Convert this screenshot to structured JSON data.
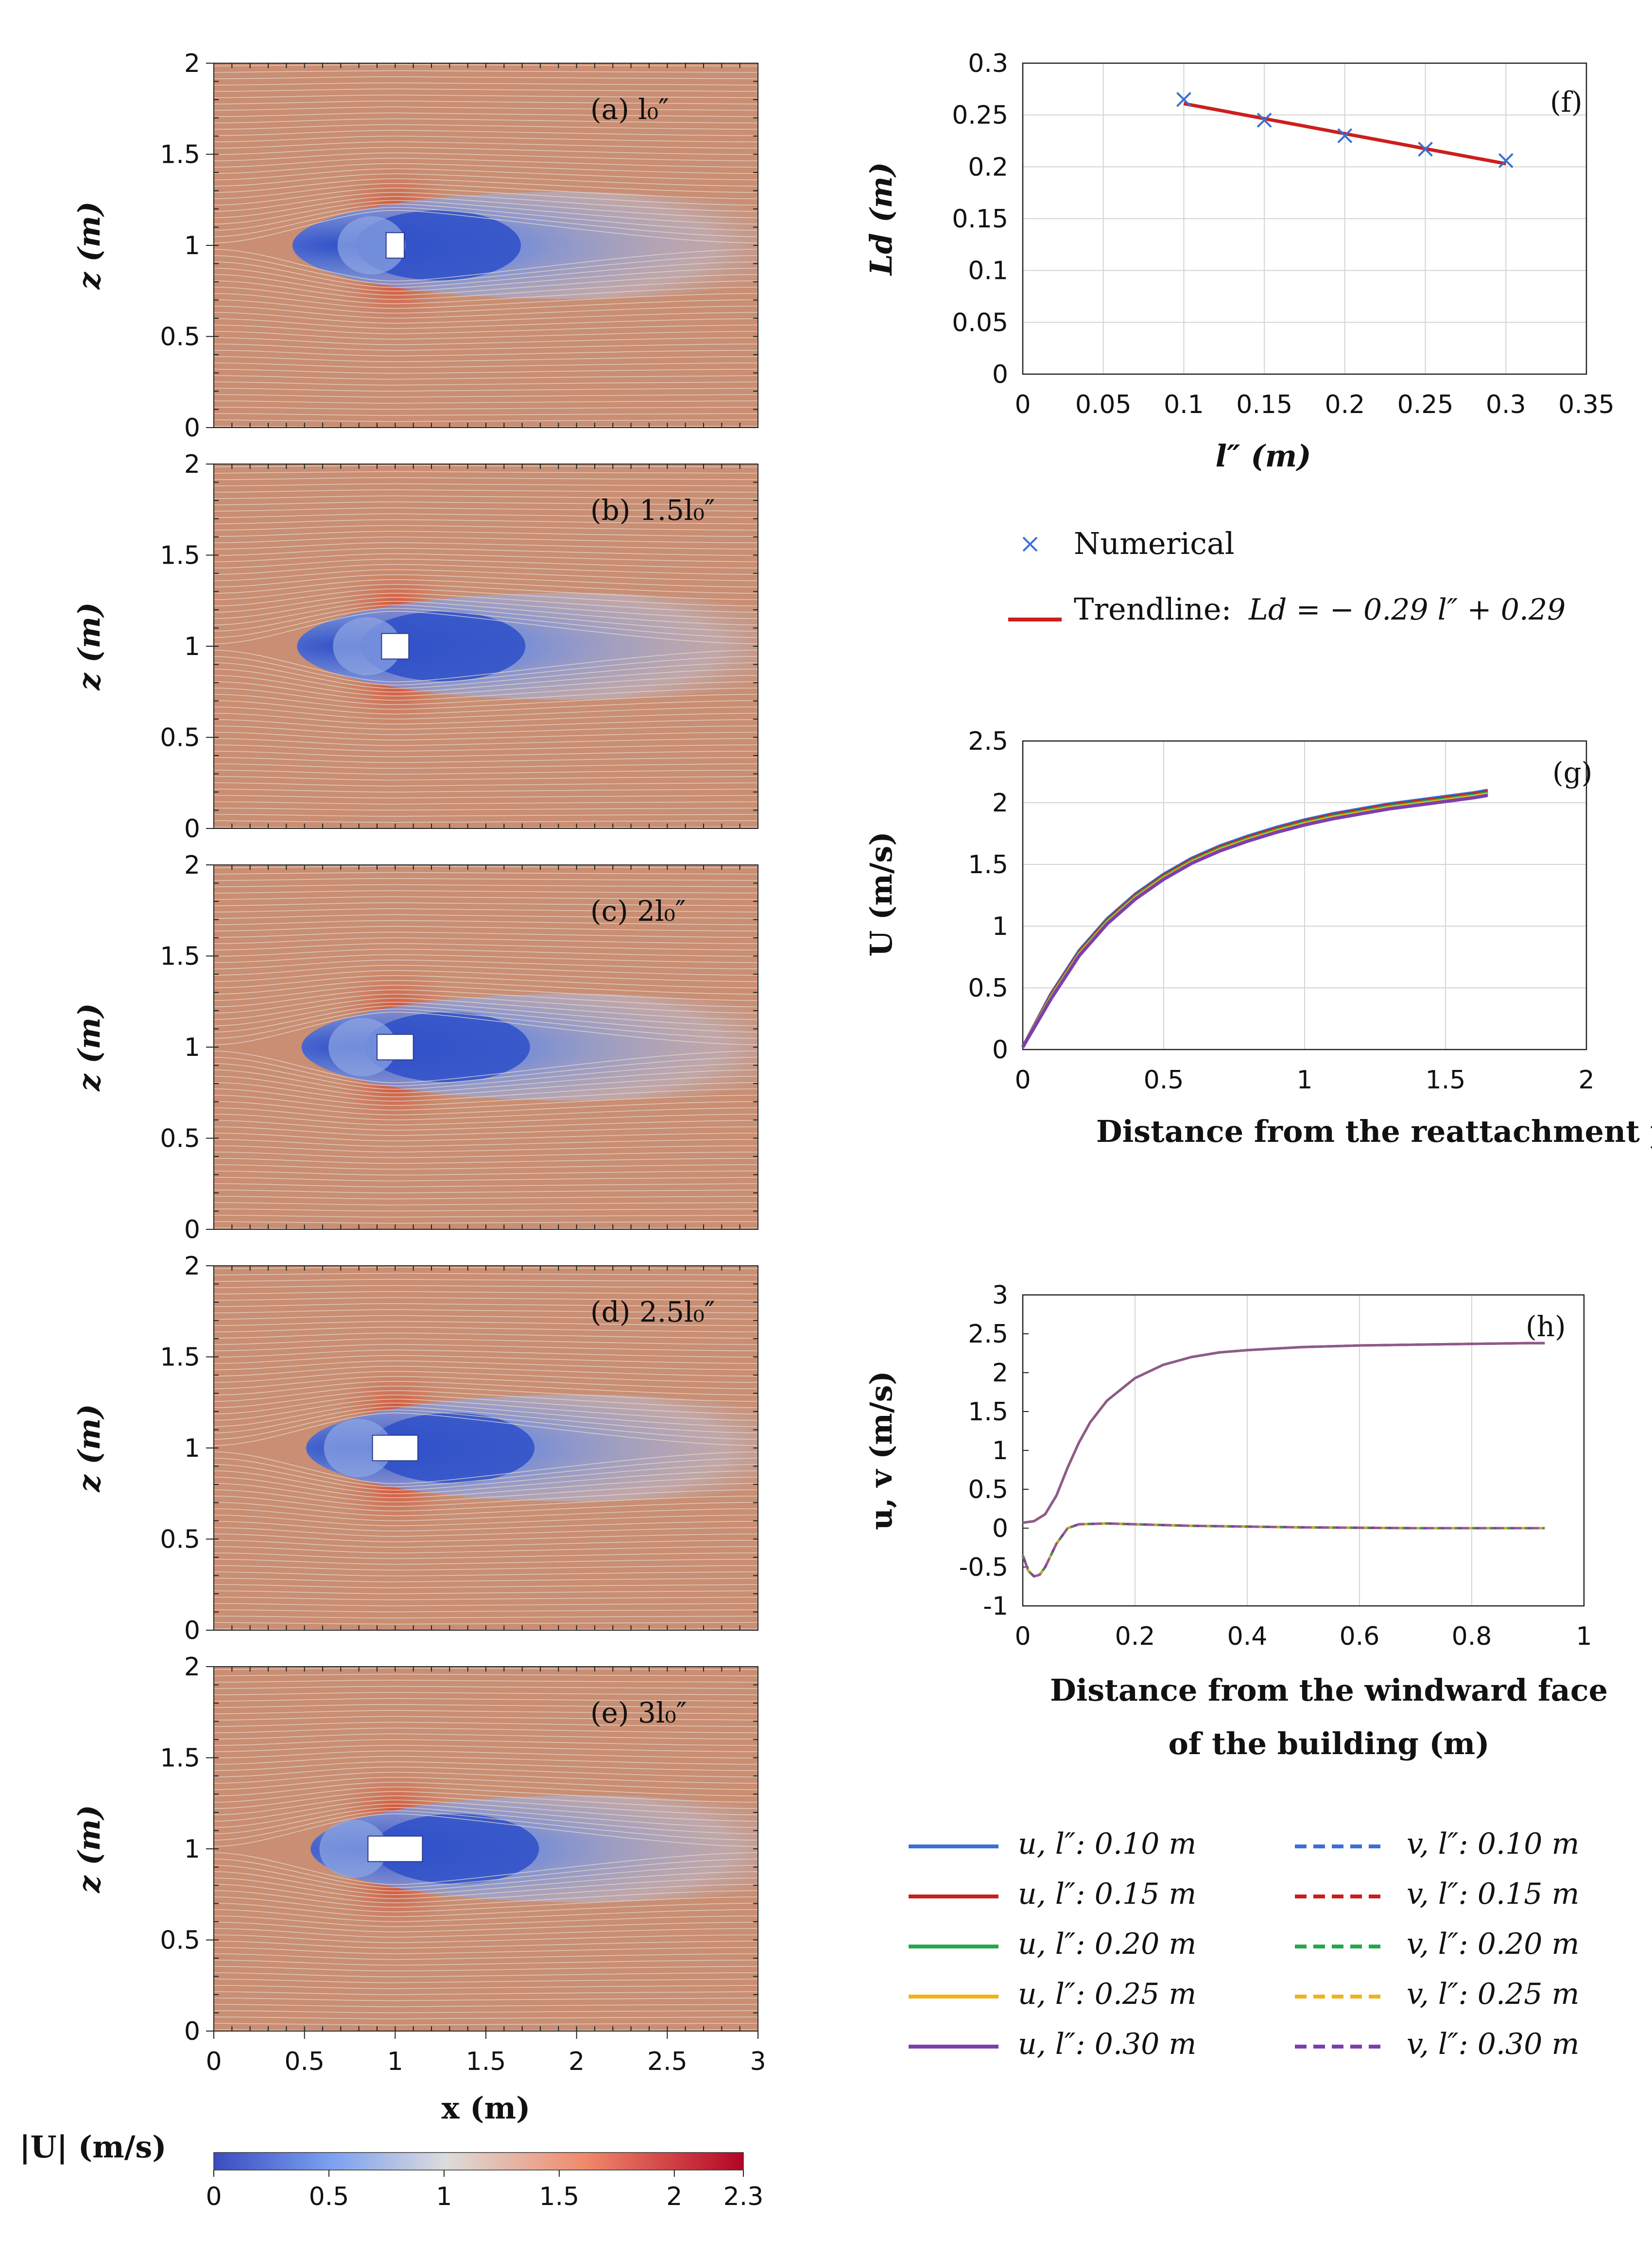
{
  "colors": {
    "field_bg": "#c98e73",
    "streamline": "#e6dccf",
    "wake": "#2e4fc8",
    "stagnation": "#d24a33",
    "trend": "#cc1f1f",
    "numerical": "#3a6fd0",
    "series": [
      "#3a6fd8",
      "#c81e1e",
      "#22a84a",
      "#f2b21c",
      "#7c3fae"
    ],
    "colorbar": [
      "#3b4cc0",
      "#7aa0f0",
      "#dcdcdc",
      "#f08a6a",
      "#b40426"
    ]
  },
  "chart_data": [
    {
      "id": "a",
      "type": "heatmap",
      "title": "(a)  l₀″",
      "xlim": [
        0,
        3
      ],
      "ylim": [
        0,
        2
      ],
      "yticks": [
        "0",
        "0.5",
        "1",
        "1.5",
        "2"
      ],
      "ylabel": "z  (m)",
      "building": {
        "x": [
          0.95,
          1.05
        ],
        "z": [
          0.93,
          1.07
        ]
      }
    },
    {
      "id": "b",
      "type": "heatmap",
      "title": "(b) 1.5l₀″",
      "xlim": [
        0,
        3
      ],
      "ylim": [
        0,
        2
      ],
      "yticks": [
        "0",
        "0.5",
        "1",
        "1.5",
        "2"
      ],
      "ylabel": "z  (m)",
      "building": {
        "x": [
          0.925,
          1.075
        ],
        "z": [
          0.93,
          1.07
        ]
      }
    },
    {
      "id": "c",
      "type": "heatmap",
      "title": "(c) 2l₀″",
      "xlim": [
        0,
        3
      ],
      "ylim": [
        0,
        2
      ],
      "yticks": [
        "0",
        "0.5",
        "1",
        "1.5",
        "2"
      ],
      "ylabel": "z  (m)",
      "building": {
        "x": [
          0.9,
          1.1
        ],
        "z": [
          0.93,
          1.07
        ]
      }
    },
    {
      "id": "d",
      "type": "heatmap",
      "title": "(d) 2.5l₀″",
      "xlim": [
        0,
        3
      ],
      "ylim": [
        0,
        2
      ],
      "yticks": [
        "0",
        "0.5",
        "1",
        "1.5",
        "2"
      ],
      "ylabel": "z  (m)",
      "building": {
        "x": [
          0.875,
          1.125
        ],
        "z": [
          0.93,
          1.07
        ]
      }
    },
    {
      "id": "e",
      "type": "heatmap",
      "title": "(e) 3l₀″",
      "xlim": [
        0,
        3
      ],
      "ylim": [
        0,
        2
      ],
      "xticks": [
        "0",
        "0.5",
        "1",
        "1.5",
        "2",
        "2.5",
        "3"
      ],
      "yticks": [
        "0",
        "0.5",
        "1",
        "1.5",
        "2"
      ],
      "xlabel": "x (m)",
      "ylabel": "z  (m)",
      "building": {
        "x": [
          0.85,
          1.15
        ],
        "z": [
          0.93,
          1.07
        ]
      }
    },
    {
      "id": "colorbar",
      "type": "colorbar",
      "label": "|U| (m/s)",
      "range": [
        0,
        2.3
      ],
      "ticks": [
        "0",
        "0.5",
        "1",
        "1.5",
        "2",
        "2.3"
      ]
    },
    {
      "id": "f",
      "type": "scatter",
      "title": "(f)",
      "xlabel": "l″ (m)",
      "ylabel": "Ld (m)",
      "xlim": [
        0,
        0.35
      ],
      "ylim": [
        0,
        0.3
      ],
      "xticks": [
        "0",
        "0.05",
        "0.1",
        "0.15",
        "0.2",
        "0.25",
        "0.3",
        "0.35"
      ],
      "yticks": [
        "0",
        "0.05",
        "0.1",
        "0.15",
        "0.2",
        "0.25",
        "0.3"
      ],
      "x": [
        0.1,
        0.15,
        0.2,
        0.25,
        0.3
      ],
      "y": [
        0.265,
        0.245,
        0.23,
        0.217,
        0.206
      ],
      "trend": {
        "x": [
          0.1,
          0.3
        ],
        "y": [
          0.261,
          0.203
        ]
      },
      "legend": {
        "numerical": "Numerical",
        "trend_prefix": "Trendline:",
        "trend_eq": "Ld = − 0.29 l″ + 0.29"
      }
    },
    {
      "id": "g",
      "type": "line",
      "title": "(g)",
      "xlabel": "Distance from the reattachment point  (m)",
      "ylabel": "U  (m/s)",
      "xlim": [
        0,
        2
      ],
      "ylim": [
        0,
        2.5
      ],
      "xticks": [
        "0",
        "0.5",
        "1",
        "1.5",
        "2"
      ],
      "yticks": [
        "0",
        "0.5",
        "1",
        "1.5",
        "2",
        "2.5"
      ],
      "x": [
        0,
        0.1,
        0.2,
        0.3,
        0.4,
        0.5,
        0.6,
        0.7,
        0.8,
        0.9,
        1.0,
        1.1,
        1.2,
        1.3,
        1.4,
        1.5,
        1.6,
        1.65
      ],
      "series": [
        {
          "name": "l″: 0.10 m",
          "values": [
            0.02,
            0.45,
            0.8,
            1.06,
            1.26,
            1.42,
            1.55,
            1.65,
            1.73,
            1.8,
            1.86,
            1.91,
            1.95,
            1.99,
            2.02,
            2.05,
            2.08,
            2.1
          ]
        },
        {
          "name": "l″: 0.15 m",
          "values": [
            0.02,
            0.44,
            0.79,
            1.05,
            1.25,
            1.41,
            1.54,
            1.64,
            1.72,
            1.79,
            1.85,
            1.9,
            1.94,
            1.98,
            2.01,
            2.04,
            2.07,
            2.09
          ]
        },
        {
          "name": "l″: 0.20 m",
          "values": [
            0.02,
            0.43,
            0.78,
            1.04,
            1.24,
            1.4,
            1.53,
            1.63,
            1.71,
            1.78,
            1.84,
            1.89,
            1.93,
            1.97,
            2.0,
            2.03,
            2.06,
            2.08
          ]
        },
        {
          "name": "l″: 0.25 m",
          "values": [
            0.02,
            0.42,
            0.77,
            1.03,
            1.23,
            1.39,
            1.52,
            1.62,
            1.7,
            1.77,
            1.83,
            1.88,
            1.92,
            1.96,
            1.99,
            2.02,
            2.05,
            2.07
          ]
        },
        {
          "name": "l″: 0.30 m",
          "values": [
            0.02,
            0.41,
            0.76,
            1.02,
            1.22,
            1.38,
            1.51,
            1.61,
            1.69,
            1.76,
            1.82,
            1.87,
            1.91,
            1.95,
            1.98,
            2.01,
            2.04,
            2.06
          ]
        }
      ]
    },
    {
      "id": "h",
      "type": "line",
      "title": "(h)",
      "xlabel_line1": "Distance from the windward face",
      "xlabel_line2": "of the building  (m)",
      "ylabel": "u, v  (m/s)",
      "xlim": [
        0,
        1
      ],
      "ylim": [
        -1,
        3
      ],
      "xticks": [
        "0",
        "0.2",
        "0.4",
        "0.6",
        "0.8",
        "1"
      ],
      "yticks": [
        "-1",
        "-0.5",
        "0",
        "0.5",
        "1",
        "1.5",
        "2",
        "2.5",
        "3"
      ],
      "x_u": [
        0,
        0.02,
        0.04,
        0.06,
        0.08,
        0.1,
        0.12,
        0.15,
        0.2,
        0.25,
        0.3,
        0.35,
        0.4,
        0.5,
        0.6,
        0.7,
        0.8,
        0.9,
        0.93
      ],
      "u": [
        0.07,
        0.09,
        0.18,
        0.42,
        0.78,
        1.1,
        1.36,
        1.64,
        1.93,
        2.1,
        2.2,
        2.26,
        2.29,
        2.33,
        2.35,
        2.36,
        2.37,
        2.38,
        2.38
      ],
      "x_v": [
        0,
        0.01,
        0.02,
        0.03,
        0.04,
        0.05,
        0.06,
        0.08,
        0.1,
        0.15,
        0.2,
        0.3,
        0.5,
        0.7,
        0.9,
        0.93
      ],
      "v": [
        -0.35,
        -0.55,
        -0.62,
        -0.6,
        -0.5,
        -0.35,
        -0.2,
        0.0,
        0.05,
        0.06,
        0.05,
        0.03,
        0.01,
        0.0,
        0.0,
        0.0
      ],
      "legend": {
        "u_entries": [
          "u,  l″: 0.10  m",
          "u,  l″: 0.15  m",
          "u,  l″: 0.20  m",
          "u,  l″: 0.25  m",
          "u,  l″: 0.30  m"
        ],
        "v_entries": [
          "v,  l″: 0.10  m",
          "v,  l″: 0.15  m",
          "v,  l″: 0.20  m",
          "v,  l″: 0.25  m",
          "v,  l″: 0.30  m"
        ]
      }
    }
  ]
}
